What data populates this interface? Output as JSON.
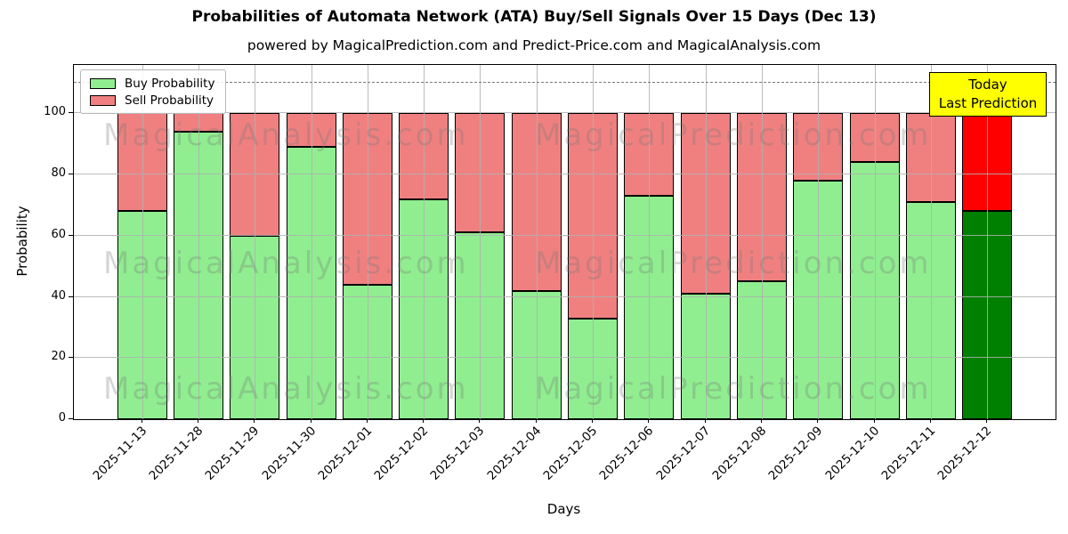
{
  "figure": {
    "title": "Probabilities of Automata Network (ATA) Buy/Sell Signals Over 15 Days (Dec 13)",
    "subtitle": "powered by MagicalPrediction.com and Predict-Price.com and MagicalAnalysis.com"
  },
  "chart_data": {
    "type": "bar",
    "stacked": true,
    "title": "Probabilities of Automata Network (ATA) Buy/Sell Signals Over 15 Days (Dec 13)",
    "xlabel": "Days",
    "ylabel": "Probability",
    "categories": [
      "2025-11-13",
      "2025-11-28",
      "2025-11-29",
      "2025-11-30",
      "2025-12-01",
      "2025-12-02",
      "2025-12-03",
      "2025-12-04",
      "2025-12-05",
      "2025-12-06",
      "2025-12-07",
      "2025-12-08",
      "2025-12-09",
      "2025-12-10",
      "2025-12-11",
      "2025-12-12"
    ],
    "series": [
      {
        "name": "Buy Probability",
        "color": "#90EE90",
        "last_bar_color": "#008000",
        "values": [
          68,
          94,
          60,
          89,
          44,
          72,
          61,
          42,
          33,
          73,
          41,
          45,
          78,
          84,
          71,
          68
        ]
      },
      {
        "name": "Sell Probability",
        "color": "#F08080",
        "last_bar_color": "#FF0000",
        "values": [
          32,
          6,
          40,
          11,
          56,
          28,
          39,
          58,
          67,
          27,
          59,
          55,
          22,
          16,
          29,
          32
        ]
      }
    ],
    "bar_total": 100,
    "yticks": [
      0,
      20,
      40,
      60,
      80,
      100
    ],
    "ylim": [
      0,
      115.8
    ],
    "reference_line": {
      "y": 110,
      "style": "dashed",
      "color": "#7a7a7a"
    },
    "grid": "on",
    "legend_position": "upper left"
  },
  "annotation_box": {
    "line1": "Today",
    "line2": "Last Prediction",
    "bg_color": "#FFFF00"
  },
  "watermarks": {
    "left_text": "MagicalAnalysis.com",
    "right_text": "MagicalPrediction.com"
  }
}
